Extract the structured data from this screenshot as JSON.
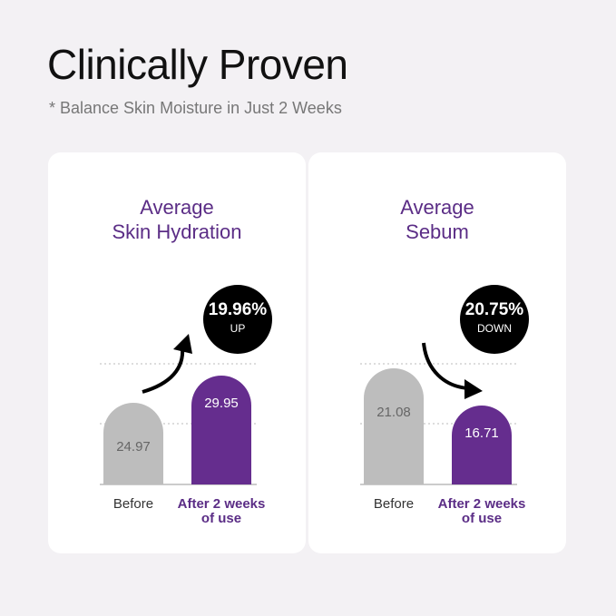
{
  "title": "Clinically Proven",
  "subtitle": "* Balance Skin Moisture in Just 2 Weeks",
  "chart_data": [
    {
      "type": "bar",
      "title": [
        "Average",
        "Skin Hydration"
      ],
      "categories": [
        "Before",
        "After 2 weeks of use"
      ],
      "values": [
        24.97,
        29.95
      ],
      "colors": [
        "#bdbdbd",
        "#652d8e"
      ],
      "ylim": [
        10,
        44
      ],
      "change": "19.96%",
      "change_direction": "UP"
    },
    {
      "type": "bar",
      "title": [
        "Average",
        "Sebum"
      ],
      "categories": [
        "Before",
        "After 2 weeks of use"
      ],
      "values": [
        21.08,
        16.71
      ],
      "colors": [
        "#bdbdbd",
        "#652d8e"
      ],
      "ylim": [
        7.5,
        29.2
      ],
      "change": "20.75%",
      "change_direction": "DOWN"
    }
  ]
}
